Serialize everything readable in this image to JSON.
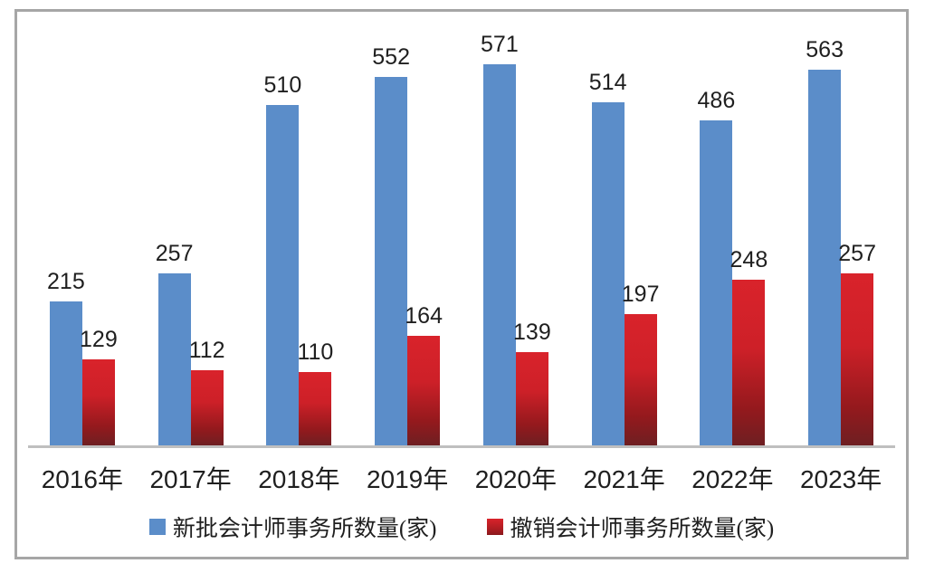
{
  "chart_data": {
    "type": "bar",
    "title": "",
    "categories": [
      "2016年",
      "2017年",
      "2018年",
      "2019年",
      "2020年",
      "2021年",
      "2022年",
      "2023年"
    ],
    "series": [
      {
        "name": "新批会计师事务所数量(家)",
        "color": "#5b8dc9",
        "values": [
          215,
          257,
          510,
          552,
          571,
          514,
          486,
          563
        ]
      },
      {
        "name": "撤销会计师事务所数量(家)",
        "color": "#d9232b",
        "color_gradient_bottom": "#6e1f22",
        "values": [
          129,
          112,
          110,
          164,
          139,
          197,
          248,
          257
        ]
      }
    ],
    "data_labels": true,
    "grid": false,
    "value_axis_visible": false,
    "ylim": [
      0,
      650
    ],
    "legend_position": "bottom",
    "axis_line_color": "#bfbfbf",
    "frame_border_color": "#a6a6a6",
    "label_color": "#1f1f1f"
  }
}
